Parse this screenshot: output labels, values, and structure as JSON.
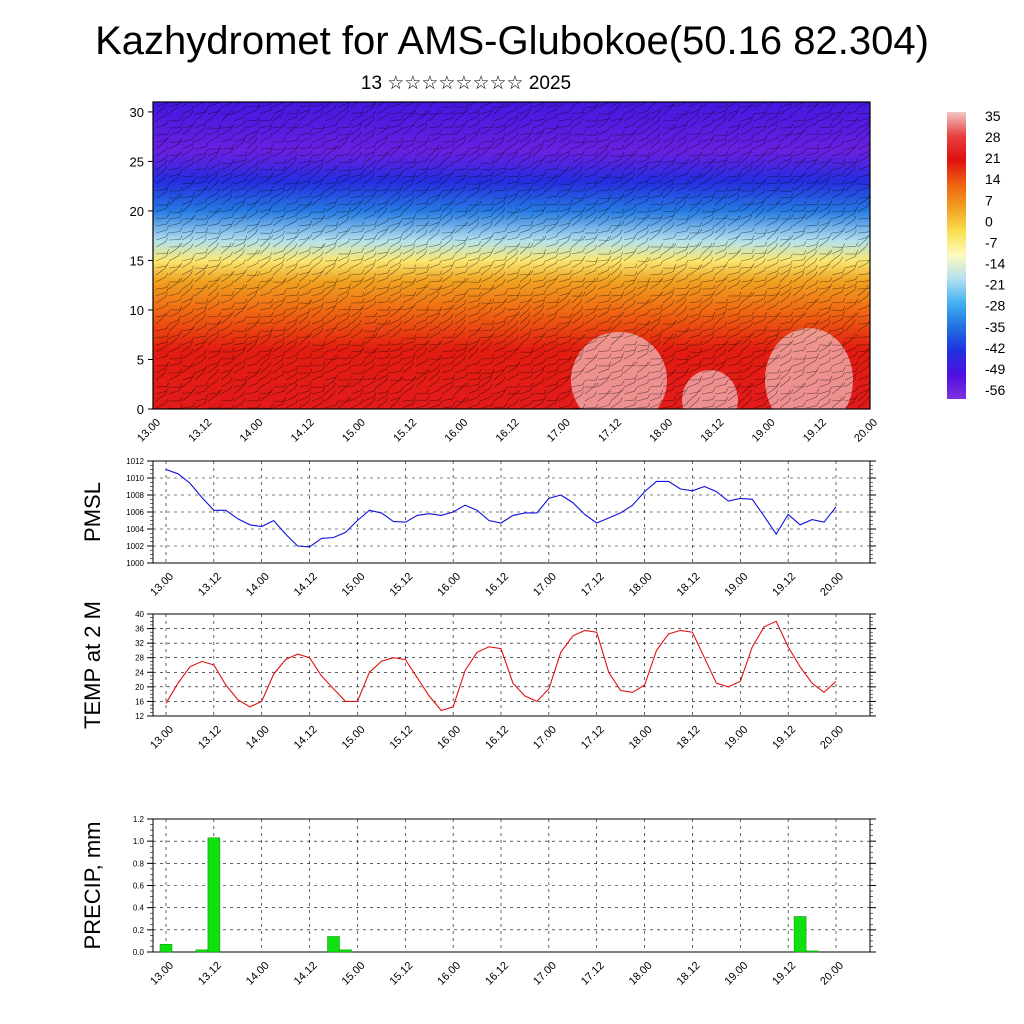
{
  "title": "Kazhydromet for AMS-Glubokoe(50.16 82.304)",
  "subtitle": "13 ☆☆☆☆☆☆☆☆ 2025",
  "x_ticks": [
    "13.00",
    "13.12",
    "14.00",
    "14.12",
    "15.00",
    "15.12",
    "16.00",
    "16.12",
    "17.00",
    "17.12",
    "18.00",
    "18.12",
    "19.00",
    "19.12",
    "20.00"
  ],
  "colorbar": {
    "labels": [
      "35",
      "28",
      "21",
      "14",
      "7",
      "0",
      "-7",
      "-14",
      "-21",
      "-28",
      "-35",
      "-42",
      "-49",
      "-56"
    ],
    "stops": [
      "#f3c7c7",
      "#e84040",
      "#e01010",
      "#f06010",
      "#f0a020",
      "#f8e050",
      "#fff9c0",
      "#b0e0f0",
      "#40b0f0",
      "#2070e0",
      "#2030e0",
      "#5010e0",
      "#8030e0"
    ]
  },
  "chart_data": [
    {
      "type": "heatmap",
      "name": "upper-air temperature and wind cross-section",
      "y_ticks": [
        0,
        5,
        10,
        15,
        20,
        25,
        30
      ],
      "ylim": [
        0,
        31
      ],
      "bands": [
        {
          "level": 0,
          "value": 21
        },
        {
          "level": 6,
          "value": 18
        },
        {
          "level": 10,
          "value": 10
        },
        {
          "level": 13,
          "value": 3
        },
        {
          "level": 15,
          "value": -7
        },
        {
          "level": 17,
          "value": -20
        },
        {
          "level": 20,
          "value": -35
        },
        {
          "level": 23,
          "value": -45
        },
        {
          "level": 26,
          "value": -56
        },
        {
          "level": 31,
          "value": -50
        }
      ]
    },
    {
      "type": "line",
      "ylabel": "PMSL",
      "ylim": [
        1000,
        1012
      ],
      "y_ticks": [
        1000,
        1002,
        1004,
        1006,
        1008,
        1010,
        1012
      ],
      "color": "#1010e0",
      "values": [
        1011,
        1010.5,
        1009.4,
        1007.7,
        1006.2,
        1006.2,
        1005.2,
        1004.5,
        1004.3,
        1005,
        1003.4,
        1002,
        1001.9,
        1002.9,
        1003,
        1003.6,
        1005,
        1006.2,
        1005.9,
        1004.9,
        1004.8,
        1005.6,
        1005.8,
        1005.6,
        1006,
        1006.8,
        1006.2,
        1005,
        1004.7,
        1005.6,
        1005.9,
        1005.9,
        1007.6,
        1008,
        1007.1,
        1005.7,
        1004.7,
        1005.3,
        1005.9,
        1006.8,
        1008.4,
        1009.6,
        1009.6,
        1008.7,
        1008.5,
        1009,
        1008.4,
        1007.3,
        1007.6,
        1007.5,
        1005.5,
        1003.4,
        1005.7,
        1004.5,
        1005.1,
        1004.8,
        1006.6
      ]
    },
    {
      "type": "line",
      "ylabel": "TEMP at 2 M",
      "ylim": [
        12,
        40
      ],
      "y_ticks": [
        12,
        16,
        20,
        24,
        28,
        32,
        36,
        40
      ],
      "color": "#e01010",
      "values": [
        15.5,
        21,
        25.5,
        27,
        26,
        20.5,
        16.5,
        14.5,
        16,
        23.5,
        27.5,
        29,
        28,
        23,
        19.5,
        16,
        16,
        24,
        27,
        28,
        27.5,
        22.5,
        17.5,
        13.5,
        14.5,
        24.5,
        29.5,
        31,
        30.5,
        21,
        17.5,
        16,
        19.5,
        29.5,
        34,
        35.5,
        35,
        24,
        19,
        18.5,
        20.5,
        30,
        34.5,
        35.5,
        35,
        28,
        21,
        20,
        21.5,
        31,
        36.5,
        38,
        31,
        25.5,
        21,
        18.5,
        21.5
      ]
    },
    {
      "type": "bar",
      "ylabel": "PRECIP, mm",
      "ylim": [
        0,
        1.2
      ],
      "y_ticks": [
        "0.0",
        "0.2",
        "0.4",
        "0.6",
        "0.8",
        "1.0",
        "1.2"
      ],
      "color": "#10e010",
      "values": [
        0.07,
        0,
        0,
        0.02,
        1.03,
        0,
        0,
        0,
        0,
        0,
        0,
        0,
        0,
        0,
        0.14,
        0.02,
        0,
        0,
        0,
        0,
        0,
        0,
        0,
        0,
        0,
        0,
        0,
        0,
        0,
        0,
        0,
        0,
        0,
        0,
        0,
        0,
        0,
        0,
        0,
        0,
        0,
        0,
        0,
        0,
        0,
        0,
        0,
        0,
        0,
        0,
        0,
        0,
        0,
        0.32,
        0.01,
        0,
        0
      ]
    }
  ]
}
